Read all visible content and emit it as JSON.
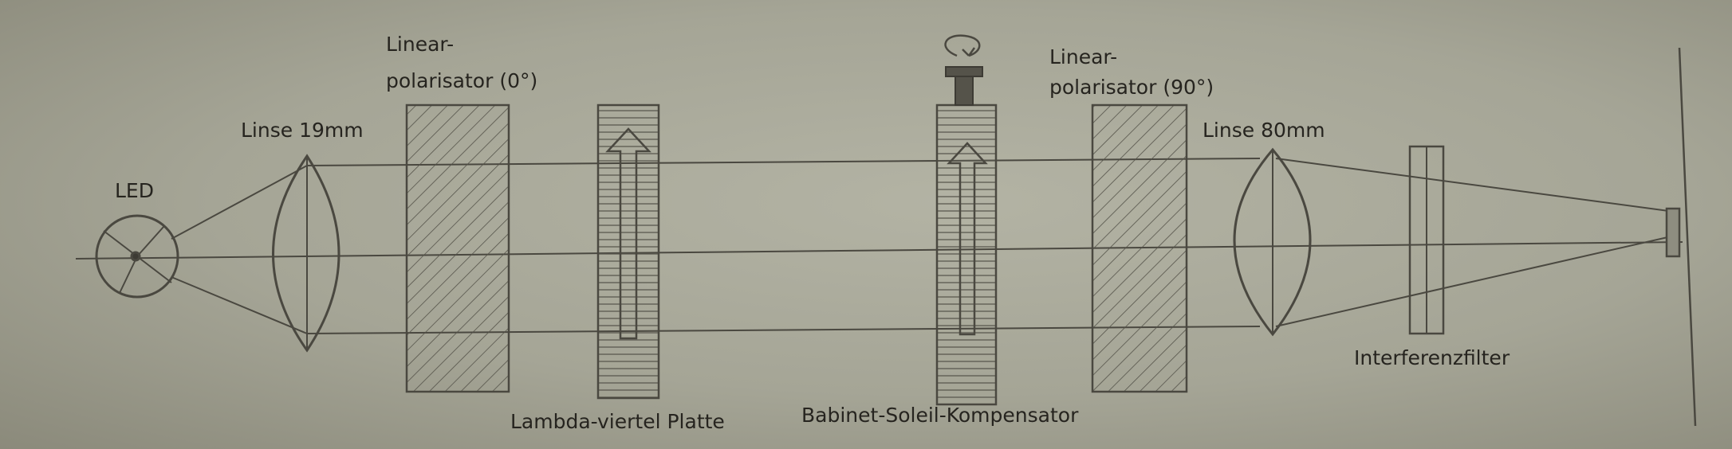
{
  "labels": {
    "led": "LED",
    "lens1": "Linse 19mm",
    "polarizer1_line1": "Linear-",
    "polarizer1_line2": "polarisator (0°)",
    "quarter_wave": "Lambda-viertel Platte",
    "compensator": "Babinet-Soleil-Kompensator",
    "polarizer2_line1": "Linear-",
    "polarizer2_line2": "polarisator (90°)",
    "lens2": "Linse 80mm",
    "filter": "Interferenzfilter"
  },
  "colors": {
    "paper": "#a8a899",
    "pencil": "#4a4840",
    "text": "#26241f"
  }
}
